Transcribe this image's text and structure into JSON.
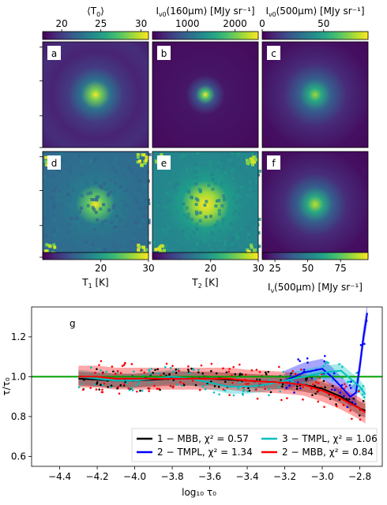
{
  "panels": [
    {
      "letter": "a",
      "row": 0,
      "col": 0,
      "kind": "T",
      "rings": true
    },
    {
      "letter": "b",
      "row": 0,
      "col": 1,
      "kind": "I160",
      "rings": false
    },
    {
      "letter": "c",
      "row": 0,
      "col": 2,
      "kind": "I500",
      "rings": false
    },
    {
      "letter": "d",
      "row": 1,
      "col": 0,
      "kind": "T1",
      "rings": false
    },
    {
      "letter": "e",
      "row": 1,
      "col": 1,
      "kind": "T2",
      "rings": false
    },
    {
      "letter": "f",
      "row": 1,
      "col": 2,
      "kind": "I500b",
      "rings": false
    }
  ],
  "colorbars": [
    {
      "label_main": "⟨T",
      "label_sub": "0",
      "label_end": "⟩",
      "ticks": [
        "20",
        "25",
        "30"
      ],
      "tick_frac": [
        0.18,
        0.55,
        0.93
      ]
    },
    {
      "label_main": "I",
      "label_sub": "ν0",
      "label_end": "(160μm) [MJy sr⁻¹]",
      "ticks": [
        "1000",
        "2000"
      ],
      "tick_frac": [
        0.33,
        0.78
      ]
    },
    {
      "label_main": "I",
      "label_sub": "ν0",
      "label_end": "(500μm) [MJy sr⁻¹]",
      "ticks": [
        "0",
        "50"
      ],
      "tick_frac": [
        0.0,
        0.58
      ]
    }
  ],
  "bottom_colorbars": [
    {
      "label_main": "T",
      "label_sub": "1",
      "label_end": " [K]",
      "ticks": [
        "20",
        "30"
      ],
      "tick_frac": [
        0.55,
        1.0
      ]
    },
    {
      "label_main": "T",
      "label_sub": "2",
      "label_end": " [K]",
      "ticks": [
        "20",
        "30"
      ],
      "tick_frac": [
        0.55,
        1.0
      ]
    },
    {
      "label_main": "I",
      "label_sub": "ν",
      "label_end": "(500μm) [MJy sr⁻¹]",
      "ticks": [
        "25",
        "50",
        "75"
      ],
      "tick_frac": [
        0.12,
        0.43,
        0.74
      ]
    }
  ],
  "chart_data": {
    "type": "line",
    "panel_letter": "g",
    "xlabel": "log₁₀ τ₀",
    "ylabel": "τ/τ₀",
    "xlim": [
      -4.55,
      -2.68
    ],
    "ylim": [
      0.55,
      1.35
    ],
    "xticks": [
      -4.4,
      -4.2,
      -4.0,
      -3.8,
      -3.6,
      -3.4,
      -3.2,
      -3.0,
      -2.8
    ],
    "xtick_labels": [
      "−4.4",
      "−4.2",
      "−4.0",
      "−3.8",
      "−3.6",
      "−3.4",
      "−3.2",
      "−3.0",
      "−2.8"
    ],
    "yticks": [
      0.6,
      0.8,
      1.0,
      1.2
    ],
    "ytick_labels": [
      "0.6",
      "0.8",
      "1.0",
      "1.2"
    ],
    "reference_line": 1.0,
    "legend_position": "lower-right",
    "series": [
      {
        "name": "1 − MBB,  χ² = 0.57",
        "color": "#000000",
        "x": [
          -4.3,
          -4.2,
          -4.1,
          -4.0,
          -3.9,
          -3.8,
          -3.7,
          -3.6,
          -3.5,
          -3.4,
          -3.3,
          -3.2,
          -3.1,
          -3.0,
          -2.9,
          -2.8,
          -2.77
        ],
        "y": [
          0.99,
          0.985,
          0.98,
          0.98,
          0.985,
          0.99,
          0.99,
          0.99,
          0.985,
          0.98,
          0.975,
          0.97,
          0.96,
          0.94,
          0.9,
          0.84,
          0.83
        ],
        "band": 0.035
      },
      {
        "name": "2 − TMPL,  χ² = 1.34",
        "color": "#0000ff",
        "x": [
          -3.2,
          -3.1,
          -3.0,
          -2.95,
          -2.9,
          -2.85,
          -2.82,
          -2.8,
          -2.78,
          -2.76
        ],
        "y": [
          0.98,
          1.02,
          1.04,
          1.0,
          0.95,
          0.9,
          0.92,
          1.05,
          1.2,
          1.32
        ],
        "band": 0.05
      },
      {
        "name": "3 − TMPL,  χ² = 1.06",
        "color": "#00bfbf",
        "x": [
          -4.3,
          -4.2,
          -4.1,
          -4.0,
          -3.9,
          -3.8,
          -3.7,
          -3.6,
          -3.5,
          -3.4,
          -3.3,
          -3.2,
          -3.1,
          -3.0,
          -2.9,
          -2.8,
          -2.77
        ],
        "y": [
          1.0,
          0.99,
          0.98,
          0.98,
          0.99,
          1.0,
          0.99,
          0.97,
          0.95,
          0.95,
          0.96,
          0.98,
          1.0,
          1.02,
          1.03,
          0.95,
          0.91
        ],
        "band": 0.035
      },
      {
        "name": "2 − MBB,  χ² = 0.84",
        "color": "#ff0000",
        "x": [
          -4.3,
          -4.2,
          -4.1,
          -4.0,
          -3.9,
          -3.8,
          -3.7,
          -3.6,
          -3.5,
          -3.4,
          -3.3,
          -3.2,
          -3.1,
          -3.0,
          -2.9,
          -2.8,
          -2.77
        ],
        "y": [
          1.0,
          1.0,
          0.99,
          0.99,
          0.99,
          0.99,
          0.99,
          0.99,
          0.99,
          0.98,
          0.975,
          0.97,
          0.96,
          0.93,
          0.89,
          0.84,
          0.82
        ],
        "band": 0.055
      }
    ]
  }
}
